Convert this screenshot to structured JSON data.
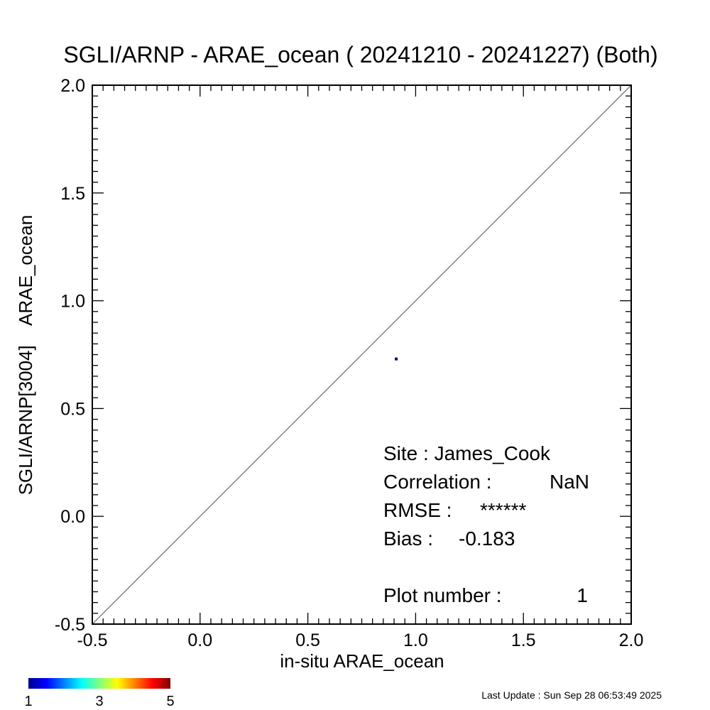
{
  "chart_data": {
    "type": "scatter",
    "title": "SGLI/ARNP - ARAE_ocean ( 20241210 - 20241227) (Both)",
    "xlabel": "in-situ ARAE_ocean",
    "ylabel": "SGLI/ARNP[3004]    ARAE_ocean",
    "xlim": [
      -0.5,
      2.0
    ],
    "ylim": [
      -0.5,
      2.0
    ],
    "x_ticks": [
      "-0.5",
      "0.0",
      "0.5",
      "1.0",
      "1.5",
      "2.0"
    ],
    "y_ticks": [
      "-0.5",
      "0.0",
      "0.5",
      "1.0",
      "1.5",
      "2.0"
    ],
    "reference_line": "1:1",
    "reference_line_color": "#808080",
    "points": [
      {
        "x": 0.91,
        "y": 0.73,
        "count": 1,
        "color": "#00008f"
      }
    ],
    "stats": {
      "site": "Site : James_Cook",
      "correlation_label": "Correlation :",
      "correlation_value": "NaN",
      "rmse_label": "RMSE :",
      "rmse_value": "******",
      "bias_label": "Bias :",
      "bias_value": "-0.183",
      "plot_number_label": "Plot number :",
      "plot_number_value": "1"
    },
    "colorbar": {
      "min": 1,
      "max": 5,
      "labels": [
        "1",
        "3",
        "5"
      ],
      "colormap": "jet"
    }
  },
  "footer": {
    "last_update": "Last Update : Sun Sep 28 06:53:49 2025"
  }
}
